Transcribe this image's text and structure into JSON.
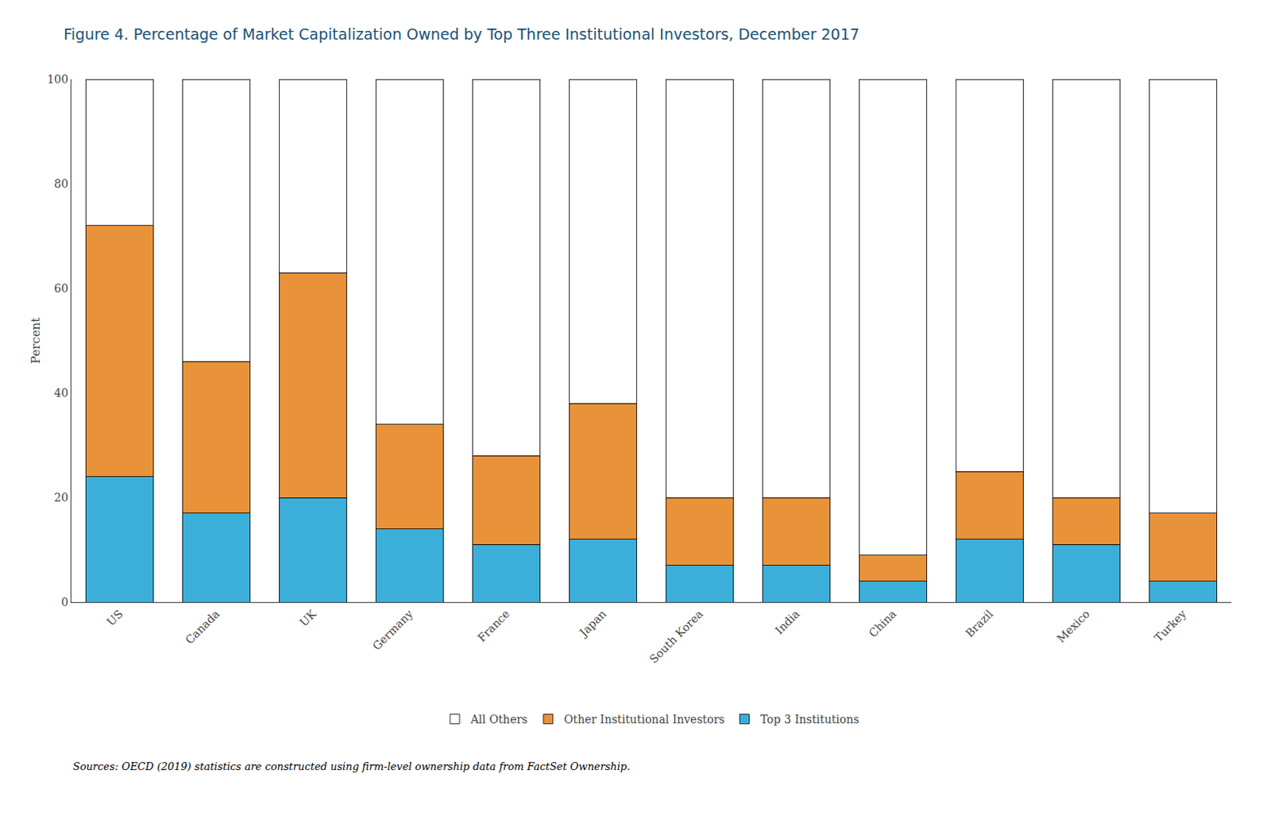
{
  "chart_data": {
    "type": "bar",
    "stacked": true,
    "title": "Figure 4. Percentage of Market Capitalization Owned by Top Three Institutional Investors, December 2017",
    "ylabel": "Percent",
    "categories": [
      "US",
      "Canada",
      "UK",
      "Germany",
      "France",
      "Japan",
      "South Korea",
      "India",
      "China",
      "Brazil",
      "Mexico",
      "Turkey"
    ],
    "series": [
      {
        "name": "Top 3 Institutions",
        "color": "#3bafd9",
        "values": [
          24,
          17,
          20,
          14,
          11,
          12,
          7,
          7,
          4,
          12,
          11,
          4
        ]
      },
      {
        "name": "Other Institutional Investors",
        "color": "#e8923a",
        "values": [
          48,
          29,
          43,
          20,
          17,
          26,
          13,
          13,
          5,
          13,
          9,
          13
        ]
      },
      {
        "name": "All Others",
        "color": "#ffffff",
        "values": [
          28,
          54,
          37,
          66,
          72,
          62,
          80,
          80,
          91,
          75,
          80,
          83
        ]
      }
    ],
    "ylim": [
      0,
      100
    ],
    "yticks": [
      0,
      20,
      40,
      60,
      80,
      100
    ],
    "grid": false,
    "legend": "bottom",
    "annotations": [
      "Sources: OECD (2019) statistics are constructed using firm-level ownership data from FactSet Ownership."
    ]
  }
}
